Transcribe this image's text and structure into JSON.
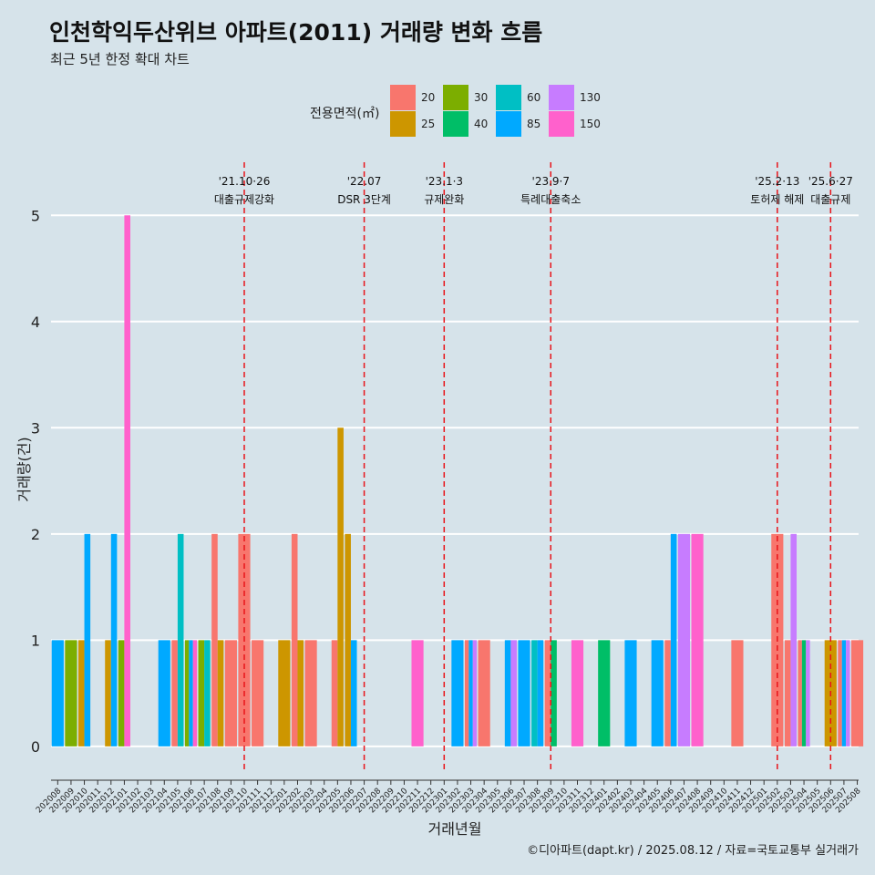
{
  "header": {
    "title": "인천학익두산위브 아파트(2011) 거래량 변화 흐름",
    "subtitle": "최근 5년 한정 확대 차트"
  },
  "legend": {
    "title": "전용면적(㎡)",
    "items": [
      {
        "label": "20",
        "color": "#F8766D"
      },
      {
        "label": "25",
        "color": "#CD9600"
      },
      {
        "label": "30",
        "color": "#7CAE00"
      },
      {
        "label": "40",
        "color": "#00BE67"
      },
      {
        "label": "60",
        "color": "#00BFC4"
      },
      {
        "label": "85",
        "color": "#00A9FF"
      },
      {
        "label": "130",
        "color": "#C77CFF"
      },
      {
        "label": "150",
        "color": "#FF61CC"
      }
    ]
  },
  "caption": "©디아파트(dapt.kr) / 2025.08.12 / 자료=국토교통부 실거래가",
  "chart_data": {
    "type": "bar",
    "stacking": "dodge",
    "xlabel": "거래년월",
    "ylabel": "거래량(건)",
    "ylim": [
      -0.25,
      5.5
    ],
    "yticks": [
      0,
      1,
      2,
      3,
      4,
      5
    ],
    "categories": [
      "202008",
      "202009",
      "202010",
      "202011",
      "202012",
      "202101",
      "202102",
      "202103",
      "202104",
      "202105",
      "202106",
      "202107",
      "202108",
      "202109",
      "202110",
      "202111",
      "202112",
      "202201",
      "202202",
      "202203",
      "202204",
      "202205",
      "202206",
      "202207",
      "202208",
      "202209",
      "202210",
      "202211",
      "202212",
      "202301",
      "202302",
      "202303",
      "202304",
      "202305",
      "202306",
      "202307",
      "202308",
      "202309",
      "202310",
      "202311",
      "202312",
      "202401",
      "202402",
      "202403",
      "202404",
      "202405",
      "202406",
      "202407",
      "202408",
      "202409",
      "202410",
      "202411",
      "202412",
      "202501",
      "202502",
      "202503",
      "202504",
      "202505",
      "202506",
      "202507",
      "202508"
    ],
    "bars": [
      {
        "month": "202008",
        "area": "85",
        "value": 1
      },
      {
        "month": "202009",
        "area": "30",
        "value": 1
      },
      {
        "month": "202010",
        "area": "25",
        "value": 1
      },
      {
        "month": "202010",
        "area": "85",
        "value": 2
      },
      {
        "month": "202012",
        "area": "25",
        "value": 1
      },
      {
        "month": "202012",
        "area": "85",
        "value": 2
      },
      {
        "month": "202101",
        "area": "30",
        "value": 1
      },
      {
        "month": "202101",
        "area": "150",
        "value": 5
      },
      {
        "month": "202104",
        "area": "85",
        "value": 1
      },
      {
        "month": "202105",
        "area": "20",
        "value": 1
      },
      {
        "month": "202105",
        "area": "60",
        "value": 2
      },
      {
        "month": "202106",
        "area": "85",
        "value": 1
      },
      {
        "month": "202106",
        "area": "30",
        "value": 1
      },
      {
        "month": "202106",
        "area": "150",
        "value": 1
      },
      {
        "month": "202107",
        "area": "30",
        "value": 1
      },
      {
        "month": "202107",
        "area": "60",
        "value": 1
      },
      {
        "month": "202108",
        "area": "20",
        "value": 2
      },
      {
        "month": "202108",
        "area": "25",
        "value": 1
      },
      {
        "month": "202109",
        "area": "20",
        "value": 1
      },
      {
        "month": "202110",
        "area": "20",
        "value": 2
      },
      {
        "month": "202111",
        "area": "20",
        "value": 1
      },
      {
        "month": "202201",
        "area": "25",
        "value": 1
      },
      {
        "month": "202202",
        "area": "20",
        "value": 2
      },
      {
        "month": "202202",
        "area": "25",
        "value": 1
      },
      {
        "month": "202203",
        "area": "20",
        "value": 1
      },
      {
        "month": "202205",
        "area": "20",
        "value": 1
      },
      {
        "month": "202205",
        "area": "25",
        "value": 3
      },
      {
        "month": "202206",
        "area": "25",
        "value": 2
      },
      {
        "month": "202206",
        "area": "85",
        "value": 1
      },
      {
        "month": "202211",
        "area": "150",
        "value": 1
      },
      {
        "month": "202302",
        "area": "85",
        "value": 1
      },
      {
        "month": "202303",
        "area": "85",
        "value": 1
      },
      {
        "month": "202303",
        "area": "130",
        "value": 1
      },
      {
        "month": "202303",
        "area": "20",
        "value": 1
      },
      {
        "month": "202304",
        "area": "20",
        "value": 1
      },
      {
        "month": "202306",
        "area": "85",
        "value": 1
      },
      {
        "month": "202306",
        "area": "130",
        "value": 1
      },
      {
        "month": "202307",
        "area": "85",
        "value": 1
      },
      {
        "month": "202308",
        "area": "60",
        "value": 1
      },
      {
        "month": "202308",
        "area": "85",
        "value": 1
      },
      {
        "month": "202309",
        "area": "20",
        "value": 1
      },
      {
        "month": "202309",
        "area": "40",
        "value": 1
      },
      {
        "month": "202311",
        "area": "150",
        "value": 1
      },
      {
        "month": "202401",
        "area": "40",
        "value": 1
      },
      {
        "month": "202403",
        "area": "85",
        "value": 1
      },
      {
        "month": "202405",
        "area": "85",
        "value": 1
      },
      {
        "month": "202406",
        "area": "20",
        "value": 1
      },
      {
        "month": "202406",
        "area": "85",
        "value": 2
      },
      {
        "month": "202407",
        "area": "130",
        "value": 2
      },
      {
        "month": "202408",
        "area": "150",
        "value": 2
      },
      {
        "month": "202411",
        "area": "20",
        "value": 1
      },
      {
        "month": "202502",
        "area": "20",
        "value": 2
      },
      {
        "month": "202503",
        "area": "130",
        "value": 2
      },
      {
        "month": "202503",
        "area": "20",
        "value": 1
      },
      {
        "month": "202504",
        "area": "40",
        "value": 1
      },
      {
        "month": "202504",
        "area": "20",
        "value": 1
      },
      {
        "month": "202504",
        "area": "130",
        "value": 1
      },
      {
        "month": "202506",
        "area": "25",
        "value": 1
      },
      {
        "month": "202507",
        "area": "20",
        "value": 1
      },
      {
        "month": "202507",
        "area": "85",
        "value": 1
      },
      {
        "month": "202507",
        "area": "130",
        "value": 1
      },
      {
        "month": "202508",
        "area": "20",
        "value": 1
      }
    ],
    "events": [
      {
        "date_label": "'21.10·26",
        "text": "대출규제강화",
        "x_month": "202110"
      },
      {
        "date_label": "'22.07",
        "text": "DSR 3단계",
        "x_month": "202207"
      },
      {
        "date_label": "'23.1·3",
        "text": "규제완화",
        "x_month": "202301"
      },
      {
        "date_label": "'23.9·7",
        "text": "특례대출축소",
        "x_month": "202309"
      },
      {
        "date_label": "'25.2·13",
        "text": "토허제 해제",
        "x_month": "202502"
      },
      {
        "date_label": "'25.6·27",
        "text": "대출규제",
        "x_month": "202506"
      }
    ]
  }
}
